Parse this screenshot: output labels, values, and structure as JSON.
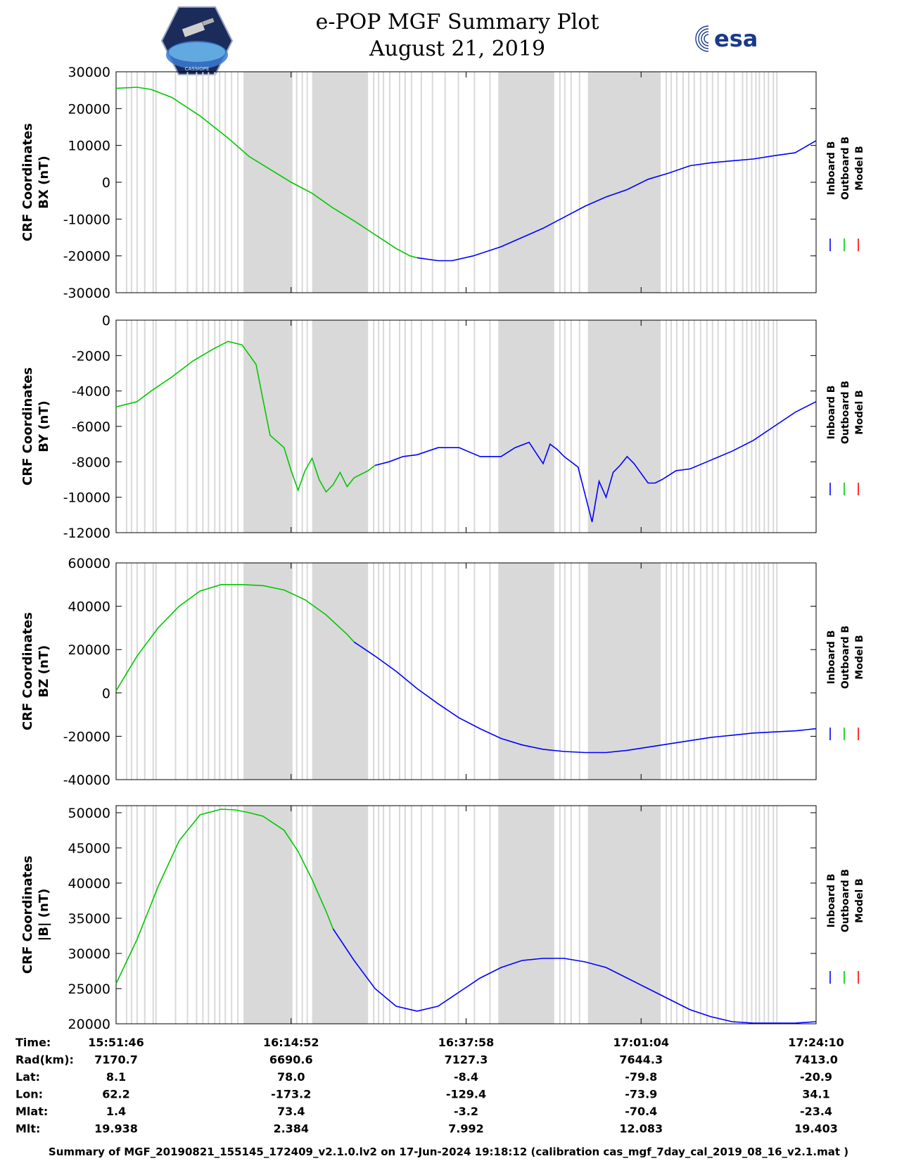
{
  "header": {
    "title_line1": "e-POP MGF Summary Plot",
    "title_line2": "August 21, 2019",
    "logo_left_caption": "CASSIOPE",
    "logo_right_text": "esa"
  },
  "colors": {
    "inboard": "#0000ff",
    "outboard": "#00c800",
    "model": "#ff0000",
    "gap_shade": "#d9d9d9"
  },
  "legend": [
    "Inboard B",
    "Outboard B",
    "Model B"
  ],
  "chart_data": [
    {
      "type": "line",
      "panel": "BX",
      "ylabel_line1": "CRF Coordinates",
      "ylabel_line2": "BX (nT)",
      "ylim": [
        -30000,
        30000
      ],
      "yticks": [
        30000,
        20000,
        10000,
        0,
        -10000,
        -20000,
        -30000
      ],
      "series": [
        {
          "name": "Outboard B",
          "x": [
            0,
            3,
            5,
            8,
            12,
            16,
            19,
            22,
            25,
            28,
            31,
            34,
            36,
            38,
            40,
            42,
            43
          ],
          "y": [
            25500,
            25800,
            25200,
            23000,
            18000,
            12000,
            7000,
            3500,
            0,
            -3000,
            -7000,
            -10500,
            -13000,
            -15500,
            -18000,
            -20000,
            -20500
          ]
        },
        {
          "name": "Inboard B",
          "x": [
            43,
            46,
            48,
            51,
            55,
            58,
            61,
            64,
            67,
            70,
            73,
            76,
            79,
            82,
            85,
            88,
            91,
            94,
            97,
            100
          ],
          "y": [
            -20500,
            -21300,
            -21300,
            -20000,
            -17500,
            -15000,
            -12500,
            -9500,
            -6500,
            -4000,
            -2000,
            800,
            2500,
            4500,
            5300,
            5800,
            6300,
            7200,
            8000,
            11300
          ]
        }
      ]
    },
    {
      "type": "line",
      "panel": "BY",
      "ylabel_line1": "CRF Coordinates",
      "ylabel_line2": "BY (nT)",
      "ylim": [
        -12000,
        0
      ],
      "yticks": [
        0,
        -2000,
        -4000,
        -6000,
        -8000,
        -10000,
        -12000
      ],
      "series": [
        {
          "name": "Outboard B",
          "x": [
            0,
            3,
            5,
            8,
            11,
            14,
            16,
            18,
            20,
            21,
            22,
            24,
            25,
            26,
            27,
            28,
            29,
            30,
            31,
            32,
            33,
            34,
            35,
            36,
            37
          ],
          "y": [
            -4900,
            -4600,
            -4000,
            -3200,
            -2300,
            -1600,
            -1200,
            -1400,
            -2500,
            -4500,
            -6500,
            -7200,
            -8500,
            -9600,
            -8500,
            -7800,
            -9000,
            -9700,
            -9300,
            -8600,
            -9400,
            -8900,
            -8700,
            -8500,
            -8200
          ]
        },
        {
          "name": "Inboard B",
          "x": [
            37,
            39,
            41,
            43,
            46,
            49,
            52,
            55,
            57,
            59,
            61,
            62,
            63,
            64,
            66,
            68,
            69,
            70,
            71,
            72,
            73,
            74,
            76,
            77,
            78,
            80,
            82,
            85,
            88,
            91,
            94,
            97,
            100
          ],
          "y": [
            -8200,
            -8000,
            -7700,
            -7600,
            -7200,
            -7200,
            -7700,
            -7700,
            -7200,
            -6900,
            -8100,
            -7000,
            -7300,
            -7700,
            -8300,
            -11400,
            -9100,
            -10000,
            -8600,
            -8200,
            -7700,
            -8100,
            -9200,
            -9200,
            -9000,
            -8500,
            -8400,
            -7900,
            -7400,
            -6800,
            -6000,
            -5200,
            -4600
          ]
        }
      ]
    },
    {
      "type": "line",
      "panel": "BZ",
      "ylabel_line1": "CRF Coordinates",
      "ylabel_line2": "BZ (nT)",
      "ylim": [
        -40000,
        60000
      ],
      "yticks": [
        60000,
        40000,
        20000,
        0,
        -20000,
        -40000
      ],
      "series": [
        {
          "name": "Outboard B",
          "x": [
            0,
            3,
            6,
            9,
            12,
            15,
            18,
            21,
            24,
            27,
            30,
            33,
            34
          ],
          "y": [
            1000,
            17000,
            30000,
            40000,
            47000,
            50000,
            50000,
            49500,
            47500,
            43000,
            36000,
            27000,
            23500
          ]
        },
        {
          "name": "Inboard B",
          "x": [
            34,
            37,
            40,
            43,
            46,
            49,
            52,
            55,
            58,
            61,
            64,
            67,
            70,
            73,
            76,
            79,
            82,
            85,
            88,
            91,
            94,
            97,
            100
          ],
          "y": [
            23500,
            17000,
            10000,
            2000,
            -5000,
            -11500,
            -16500,
            -21000,
            -24000,
            -26000,
            -27000,
            -27500,
            -27500,
            -26500,
            -25000,
            -23500,
            -22000,
            -20500,
            -19500,
            -18500,
            -18000,
            -17500,
            -16500
          ]
        }
      ]
    },
    {
      "type": "line",
      "panel": "|B|",
      "ylabel_line1": "CRF Coordinates",
      "ylabel_line2": "|B| (nT)",
      "ylim": [
        20000,
        51000
      ],
      "yticks": [
        50000,
        45000,
        40000,
        35000,
        30000,
        25000,
        20000
      ],
      "series": [
        {
          "name": "Outboard B",
          "x": [
            0,
            3,
            6,
            9,
            12,
            15,
            17,
            19,
            21,
            24,
            26,
            28,
            30,
            31
          ],
          "y": [
            25700,
            32000,
            39500,
            46000,
            49700,
            50500,
            50400,
            50000,
            49500,
            47500,
            44500,
            40500,
            36000,
            33500
          ]
        },
        {
          "name": "Inboard B",
          "x": [
            31,
            34,
            37,
            40,
            43,
            46,
            49,
            52,
            55,
            58,
            61,
            64,
            67,
            70,
            73,
            76,
            79,
            82,
            85,
            88,
            91,
            94,
            97,
            100
          ],
          "y": [
            33500,
            29000,
            25000,
            22500,
            21800,
            22500,
            24500,
            26500,
            28000,
            29000,
            29300,
            29300,
            28800,
            28000,
            26500,
            25000,
            23500,
            22000,
            21000,
            20300,
            20100,
            20100,
            20100,
            20300
          ]
        }
      ]
    }
  ],
  "x_axis": {
    "tick_fractions": [
      0,
      25,
      50,
      75,
      100
    ],
    "table": [
      {
        "label": "Time:",
        "values": [
          "15:51:46",
          "16:14:52",
          "16:37:58",
          "17:01:04",
          "17:24:10"
        ]
      },
      {
        "label": "Rad(km):",
        "values": [
          "7170.7",
          "6690.6",
          "7127.3",
          "7644.3",
          "7413.0"
        ]
      },
      {
        "label": "Lat:",
        "values": [
          "8.1",
          "78.0",
          "-8.4",
          "-79.8",
          "-20.9"
        ]
      },
      {
        "label": "Lon:",
        "values": [
          "62.2",
          "-173.2",
          "-129.4",
          "-73.9",
          "34.1"
        ]
      },
      {
        "label": "Mlat:",
        "values": [
          "1.4",
          "73.4",
          "-3.2",
          "-70.4",
          "-23.4"
        ]
      },
      {
        "label": "Mlt:",
        "values": [
          "19.938",
          "2.384",
          "7.992",
          "12.083",
          "19.403"
        ]
      }
    ]
  },
  "gap_bands": [
    [
      18.2,
      25.2
    ],
    [
      28,
      36
    ],
    [
      54.6,
      62.6
    ],
    [
      67.4,
      77.8
    ]
  ],
  "gap_lines": [
    1.5,
    2.2,
    3.0,
    4.1,
    5.3,
    5.7,
    8.5,
    10.2,
    11.5,
    12.4,
    13.2,
    14.1,
    14.8,
    15.6,
    16.5,
    17.4,
    25.8,
    26.6,
    27.3,
    36.8,
    37.5,
    38.2,
    39.1,
    40.5,
    41.3,
    42.2,
    43.6,
    45.2,
    47.0,
    48.9,
    51.2,
    53.4,
    63.4,
    64.1,
    65.0,
    66.2,
    78.6,
    79.3,
    80.1,
    81.0,
    81.8,
    82.6,
    83.5,
    84.4,
    85.2,
    86.0,
    87.1,
    88.3,
    89.5,
    90.1,
    90.8,
    91.4,
    91.9,
    92.6,
    93.2,
    93.9,
    94.4
  ],
  "footer": "Summary of MGF_20190821_155145_172409_v2.1.0.lv2 on 17-Jun-2024 19:18:12 (calibration cas_mgf_7day_cal_2019_08_16_v2.1.mat )"
}
